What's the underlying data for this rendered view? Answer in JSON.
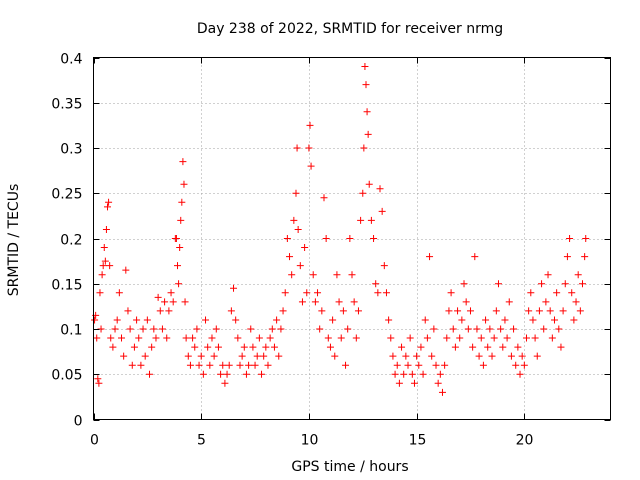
{
  "chart_data": {
    "type": "scatter",
    "title": "Day 238 of 2022, SRMTID for receiver nrmg",
    "xlabel": "GPS time / hours",
    "ylabel": "SRMTID / TECUs",
    "xlim": [
      0,
      24
    ],
    "ylim": [
      0,
      0.4
    ],
    "xticks": [
      0,
      5,
      10,
      15,
      20
    ],
    "xtick_labels": [
      "0",
      "5",
      "10",
      "15",
      "20"
    ],
    "yticks": [
      0,
      0.05,
      0.1,
      0.15,
      0.2,
      0.25,
      0.3,
      0.35,
      0.4
    ],
    "ytick_labels": [
      "0",
      "0.05",
      "0.1",
      "0.15",
      "0.2",
      "0.25",
      "0.3",
      "0.35",
      "0.4"
    ],
    "grid": true,
    "marker": "+",
    "color": "#ff0000",
    "series": [
      {
        "name": "SRMTID",
        "points": [
          [
            0.05,
            0.11
          ],
          [
            0.1,
            0.115
          ],
          [
            0.15,
            0.09
          ],
          [
            0.2,
            0.045
          ],
          [
            0.25,
            0.04
          ],
          [
            0.3,
            0.14
          ],
          [
            0.35,
            0.1
          ],
          [
            0.4,
            0.16
          ],
          [
            0.45,
            0.17
          ],
          [
            0.5,
            0.19
          ],
          [
            0.55,
            0.175
          ],
          [
            0.6,
            0.21
          ],
          [
            0.65,
            0.235
          ],
          [
            0.7,
            0.24
          ],
          [
            0.75,
            0.17
          ],
          [
            0.8,
            0.09
          ],
          [
            0.9,
            0.08
          ],
          [
            1.0,
            0.1
          ],
          [
            1.1,
            0.11
          ],
          [
            1.2,
            0.14
          ],
          [
            1.3,
            0.09
          ],
          [
            1.4,
            0.07
          ],
          [
            1.5,
            0.165
          ],
          [
            1.6,
            0.12
          ],
          [
            1.7,
            0.1
          ],
          [
            1.8,
            0.06
          ],
          [
            1.9,
            0.08
          ],
          [
            2.0,
            0.11
          ],
          [
            2.1,
            0.09
          ],
          [
            2.2,
            0.06
          ],
          [
            2.3,
            0.1
          ],
          [
            2.4,
            0.07
          ],
          [
            2.5,
            0.11
          ],
          [
            2.6,
            0.05
          ],
          [
            2.7,
            0.08
          ],
          [
            2.8,
            0.1
          ],
          [
            2.9,
            0.09
          ],
          [
            3.0,
            0.135
          ],
          [
            3.1,
            0.12
          ],
          [
            3.2,
            0.1
          ],
          [
            3.3,
            0.13
          ],
          [
            3.4,
            0.09
          ],
          [
            3.5,
            0.12
          ],
          [
            3.6,
            0.14
          ],
          [
            3.7,
            0.13
          ],
          [
            3.8,
            0.2
          ],
          [
            3.85,
            0.2
          ],
          [
            3.9,
            0.17
          ],
          [
            3.95,
            0.15
          ],
          [
            4.0,
            0.19
          ],
          [
            4.05,
            0.22
          ],
          [
            4.1,
            0.24
          ],
          [
            4.15,
            0.285
          ],
          [
            4.2,
            0.26
          ],
          [
            4.25,
            0.13
          ],
          [
            4.3,
            0.09
          ],
          [
            4.4,
            0.07
          ],
          [
            4.5,
            0.06
          ],
          [
            4.6,
            0.09
          ],
          [
            4.7,
            0.08
          ],
          [
            4.8,
            0.1
          ],
          [
            4.9,
            0.06
          ],
          [
            5.0,
            0.07
          ],
          [
            5.1,
            0.05
          ],
          [
            5.2,
            0.11
          ],
          [
            5.3,
            0.08
          ],
          [
            5.4,
            0.06
          ],
          [
            5.5,
            0.09
          ],
          [
            5.6,
            0.07
          ],
          [
            5.7,
            0.1
          ],
          [
            5.8,
            0.08
          ],
          [
            5.9,
            0.05
          ],
          [
            6.0,
            0.06
          ],
          [
            6.1,
            0.04
          ],
          [
            6.2,
            0.05
          ],
          [
            6.3,
            0.06
          ],
          [
            6.4,
            0.12
          ],
          [
            6.5,
            0.145
          ],
          [
            6.6,
            0.11
          ],
          [
            6.7,
            0.09
          ],
          [
            6.8,
            0.06
          ],
          [
            6.9,
            0.07
          ],
          [
            7.0,
            0.08
          ],
          [
            7.1,
            0.05
          ],
          [
            7.2,
            0.06
          ],
          [
            7.3,
            0.1
          ],
          [
            7.4,
            0.08
          ],
          [
            7.5,
            0.06
          ],
          [
            7.6,
            0.07
          ],
          [
            7.7,
            0.09
          ],
          [
            7.8,
            0.05
          ],
          [
            7.9,
            0.07
          ],
          [
            8.0,
            0.08
          ],
          [
            8.1,
            0.06
          ],
          [
            8.2,
            0.09
          ],
          [
            8.3,
            0.1
          ],
          [
            8.4,
            0.08
          ],
          [
            8.5,
            0.11
          ],
          [
            8.6,
            0.07
          ],
          [
            8.7,
            0.1
          ],
          [
            8.8,
            0.12
          ],
          [
            8.9,
            0.14
          ],
          [
            9.0,
            0.2
          ],
          [
            9.1,
            0.18
          ],
          [
            9.2,
            0.16
          ],
          [
            9.3,
            0.22
          ],
          [
            9.4,
            0.25
          ],
          [
            9.45,
            0.3
          ],
          [
            9.5,
            0.21
          ],
          [
            9.6,
            0.17
          ],
          [
            9.7,
            0.13
          ],
          [
            9.8,
            0.19
          ],
          [
            9.9,
            0.14
          ],
          [
            10.0,
            0.3
          ],
          [
            10.05,
            0.325
          ],
          [
            10.1,
            0.28
          ],
          [
            10.2,
            0.16
          ],
          [
            10.3,
            0.13
          ],
          [
            10.4,
            0.14
          ],
          [
            10.5,
            0.1
          ],
          [
            10.6,
            0.12
          ],
          [
            10.7,
            0.245
          ],
          [
            10.8,
            0.2
          ],
          [
            10.9,
            0.09
          ],
          [
            11.0,
            0.08
          ],
          [
            11.1,
            0.11
          ],
          [
            11.2,
            0.07
          ],
          [
            11.3,
            0.16
          ],
          [
            11.4,
            0.13
          ],
          [
            11.5,
            0.09
          ],
          [
            11.6,
            0.12
          ],
          [
            11.7,
            0.06
          ],
          [
            11.8,
            0.1
          ],
          [
            11.9,
            0.2
          ],
          [
            12.0,
            0.16
          ],
          [
            12.1,
            0.13
          ],
          [
            12.2,
            0.09
          ],
          [
            12.3,
            0.12
          ],
          [
            12.4,
            0.22
          ],
          [
            12.5,
            0.25
          ],
          [
            12.55,
            0.3
          ],
          [
            12.6,
            0.39
          ],
          [
            12.65,
            0.37
          ],
          [
            12.7,
            0.34
          ],
          [
            12.75,
            0.315
          ],
          [
            12.8,
            0.26
          ],
          [
            12.9,
            0.22
          ],
          [
            13.0,
            0.2
          ],
          [
            13.1,
            0.15
          ],
          [
            13.2,
            0.14
          ],
          [
            13.3,
            0.255
          ],
          [
            13.4,
            0.23
          ],
          [
            13.5,
            0.17
          ],
          [
            13.6,
            0.14
          ],
          [
            13.7,
            0.11
          ],
          [
            13.8,
            0.09
          ],
          [
            13.9,
            0.07
          ],
          [
            14.0,
            0.05
          ],
          [
            14.1,
            0.06
          ],
          [
            14.2,
            0.04
          ],
          [
            14.3,
            0.08
          ],
          [
            14.4,
            0.05
          ],
          [
            14.5,
            0.07
          ],
          [
            14.6,
            0.06
          ],
          [
            14.7,
            0.09
          ],
          [
            14.8,
            0.05
          ],
          [
            14.9,
            0.04
          ],
          [
            15.0,
            0.07
          ],
          [
            15.1,
            0.06
          ],
          [
            15.2,
            0.08
          ],
          [
            15.3,
            0.05
          ],
          [
            15.4,
            0.11
          ],
          [
            15.5,
            0.09
          ],
          [
            15.6,
            0.18
          ],
          [
            15.7,
            0.07
          ],
          [
            15.8,
            0.1
          ],
          [
            15.9,
            0.06
          ],
          [
            16.0,
            0.04
          ],
          [
            16.1,
            0.05
          ],
          [
            16.2,
            0.03
          ],
          [
            16.3,
            0.06
          ],
          [
            16.4,
            0.09
          ],
          [
            16.5,
            0.12
          ],
          [
            16.6,
            0.14
          ],
          [
            16.7,
            0.1
          ],
          [
            16.8,
            0.08
          ],
          [
            16.9,
            0.12
          ],
          [
            17.0,
            0.09
          ],
          [
            17.1,
            0.11
          ],
          [
            17.2,
            0.15
          ],
          [
            17.3,
            0.13
          ],
          [
            17.4,
            0.1
          ],
          [
            17.5,
            0.12
          ],
          [
            17.6,
            0.08
          ],
          [
            17.7,
            0.18
          ],
          [
            17.8,
            0.1
          ],
          [
            17.9,
            0.07
          ],
          [
            18.0,
            0.09
          ],
          [
            18.1,
            0.06
          ],
          [
            18.2,
            0.11
          ],
          [
            18.3,
            0.08
          ],
          [
            18.4,
            0.1
          ],
          [
            18.5,
            0.07
          ],
          [
            18.6,
            0.09
          ],
          [
            18.7,
            0.12
          ],
          [
            18.8,
            0.15
          ],
          [
            18.9,
            0.1
          ],
          [
            19.0,
            0.08
          ],
          [
            19.1,
            0.11
          ],
          [
            19.2,
            0.09
          ],
          [
            19.3,
            0.13
          ],
          [
            19.4,
            0.07
          ],
          [
            19.5,
            0.1
          ],
          [
            19.6,
            0.06
          ],
          [
            19.7,
            0.08
          ],
          [
            19.8,
            0.05
          ],
          [
            19.9,
            0.07
          ],
          [
            20.0,
            0.06
          ],
          [
            20.1,
            0.09
          ],
          [
            20.2,
            0.12
          ],
          [
            20.3,
            0.14
          ],
          [
            20.4,
            0.11
          ],
          [
            20.5,
            0.09
          ],
          [
            20.6,
            0.07
          ],
          [
            20.7,
            0.12
          ],
          [
            20.8,
            0.15
          ],
          [
            20.9,
            0.1
          ],
          [
            21.0,
            0.13
          ],
          [
            21.1,
            0.16
          ],
          [
            21.2,
            0.12
          ],
          [
            21.3,
            0.09
          ],
          [
            21.4,
            0.11
          ],
          [
            21.5,
            0.14
          ],
          [
            21.6,
            0.1
          ],
          [
            21.7,
            0.08
          ],
          [
            21.8,
            0.12
          ],
          [
            21.9,
            0.15
          ],
          [
            22.0,
            0.18
          ],
          [
            22.1,
            0.2
          ],
          [
            22.2,
            0.14
          ],
          [
            22.3,
            0.11
          ],
          [
            22.4,
            0.13
          ],
          [
            22.5,
            0.16
          ],
          [
            22.6,
            0.12
          ],
          [
            22.7,
            0.15
          ],
          [
            22.8,
            0.18
          ],
          [
            22.85,
            0.2
          ]
        ]
      }
    ]
  }
}
